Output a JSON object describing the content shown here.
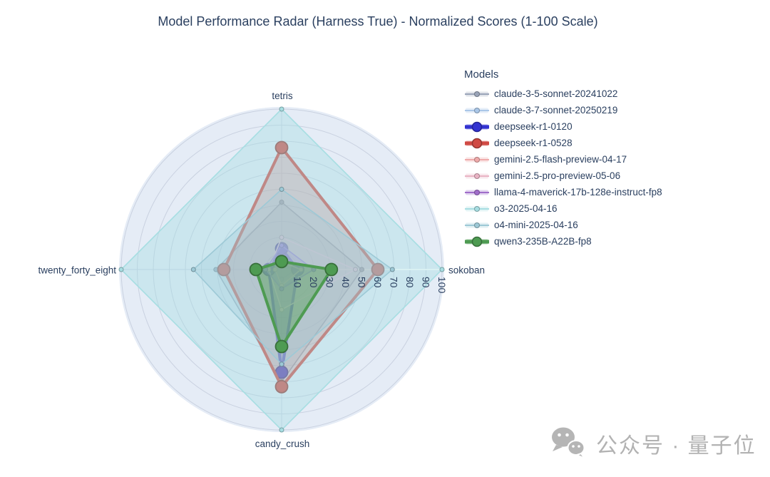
{
  "title": "Model Performance Radar (Harness True) - Normalized Scores (1-100 Scale)",
  "legend": {
    "title": "Models"
  },
  "watermark": {
    "text": "公众号 · 量子位",
    "icon": "wechat-icon",
    "color": "#b5b5b5"
  },
  "colors": {
    "title_text": "#2a3f5f",
    "polar_background": "#e5ecf6",
    "grid_line": "#c9d1e0",
    "radial_axis_line": "#ffffff"
  },
  "chart_data": {
    "type": "radar",
    "title": "Model Performance Radar (Harness True) - Normalized Scores (1-100 Scale)",
    "axes": [
      "tetris",
      "sokoban",
      "candy_crush",
      "twenty_forty_eight"
    ],
    "radial_ticks": [
      10,
      20,
      30,
      40,
      50,
      60,
      70,
      80,
      90,
      100
    ],
    "range": [
      0,
      100
    ],
    "grid": true,
    "legend_position": "right",
    "value_order_note": "values are [tetris, sokoban, candy_crush, twenty_forty_eight]",
    "series": [
      {
        "name": "claude-3-5-sonnet-20241022",
        "color": "#9aa4b8",
        "bold": false,
        "fill_alpha": 0.22,
        "values": [
          42,
          50,
          70,
          41
        ]
      },
      {
        "name": "claude-3-7-sonnet-20250219",
        "color": "#aac7e8",
        "bold": false,
        "fill_alpha": 0.3,
        "values": [
          3,
          9,
          6,
          6
        ]
      },
      {
        "name": "deepseek-r1-0120",
        "color": "#3333d1",
        "bold": true,
        "fill_alpha": 0.3,
        "values": [
          13,
          10,
          64,
          8
        ]
      },
      {
        "name": "deepseek-r1-0528",
        "color": "#d04a44",
        "bold": true,
        "fill_alpha": 0.28,
        "values": [
          76,
          60,
          73,
          36
        ]
      },
      {
        "name": "gemini-2.5-flash-preview-04-17",
        "color": "#efaaaa",
        "bold": false,
        "fill_alpha": 0.3,
        "values": [
          5,
          12,
          10,
          4
        ]
      },
      {
        "name": "gemini-2.5-pro-preview-05-06",
        "color": "#e9b3c4",
        "bold": false,
        "fill_alpha": 0.25,
        "values": [
          20,
          46,
          25,
          8
        ]
      },
      {
        "name": "llama-4-maverick-17b-128e-instruct-fp8",
        "color": "#a06dca",
        "bold": false,
        "fill_alpha": 0.3,
        "values": [
          15,
          20,
          12,
          10
        ]
      },
      {
        "name": "o3-2025-04-16",
        "color": "#a7dee2",
        "bold": false,
        "fill_alpha": 0.42,
        "values": [
          100,
          100,
          100,
          100
        ]
      },
      {
        "name": "o4-mini-2025-04-16",
        "color": "#9dc9d6",
        "bold": false,
        "fill_alpha": 0.3,
        "values": [
          50,
          69,
          59,
          55
        ]
      },
      {
        "name": "qwen3-235B-A22B-fp8",
        "color": "#4e9b52",
        "bold": true,
        "fill_alpha": 0.42,
        "values": [
          5,
          31,
          48,
          16
        ]
      }
    ]
  }
}
